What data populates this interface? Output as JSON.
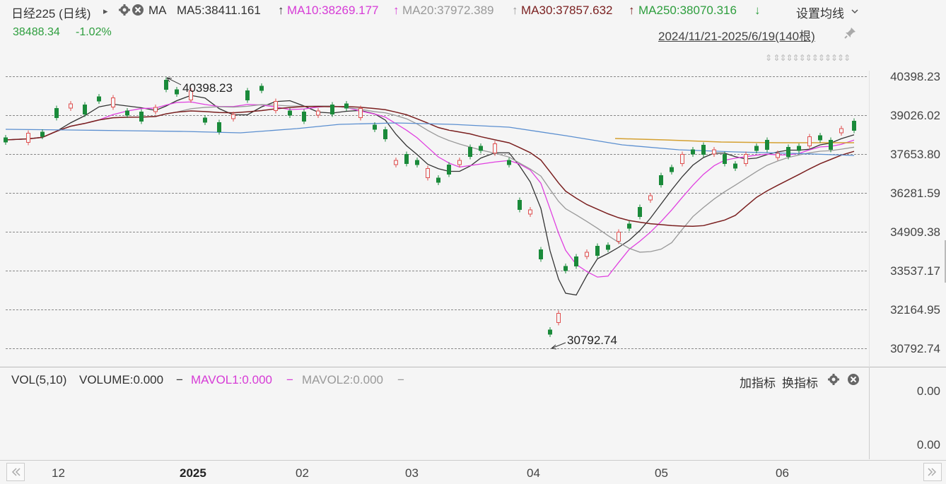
{
  "header": {
    "title": "日经225 (日线)",
    "title_arrow": "▸",
    "ma_label": "MA",
    "ma5": "MA5:38411.161",
    "ma5_arrow": "↑",
    "ma10": "MA10:38269.177",
    "ma10_arrow": "↑",
    "ma20": "MA20:37972.389",
    "ma20_arrow": "↑",
    "ma30": "MA30:37857.632",
    "ma30_arrow": "↑",
    "ma250": "MA250:38070.316",
    "ma250_arrow": "↓",
    "settings_label": "设置均线",
    "price": "38488.34",
    "change": "-1.02%",
    "date_range": "2024/11/21-2025/6/19(140根)",
    "toolbar_glyphs": "⇕ ⇕⇕⇕⇕⇕⇕⇕⇕⇕⇕⇕⇕"
  },
  "colors": {
    "ma5": "#333333",
    "ma10": "#e040e0",
    "ma20": "#999999",
    "ma30": "#7a1f1f",
    "ma250": "#2e9e3e",
    "up": "#e05050",
    "down": "#1a8a3a",
    "blue_line": "#5b8fd0",
    "orange_line": "#d4a030"
  },
  "chart_data": {
    "type": "candlestick",
    "y_ticks": [
      "40398.23",
      "39026.02",
      "37653.80",
      "36281.59",
      "34909.38",
      "33537.17",
      "32164.95",
      "30792.74"
    ],
    "ylim": [
      30792.74,
      40398.23
    ],
    "x_ticks": [
      "12",
      "2025",
      "02",
      "03",
      "04",
      "05",
      "06"
    ],
    "annotations": {
      "high": "40398.23",
      "low": "30792.74"
    }
  },
  "volume": {
    "title": "VOL(5,10)",
    "volume": "VOLUME:0.000",
    "mavol1": "MAVOL1:0.000",
    "mavol2": "MAVOL2:0.000",
    "add_indicator": "加指标",
    "switch_indicator": "换指标",
    "y_ticks": [
      "0.00",
      "0.00"
    ]
  },
  "icons": [
    "gear-icon",
    "close-icon",
    "pin-icon",
    "chevron-down-icon",
    "scroll-left-icon",
    "scroll-right-icon"
  ]
}
